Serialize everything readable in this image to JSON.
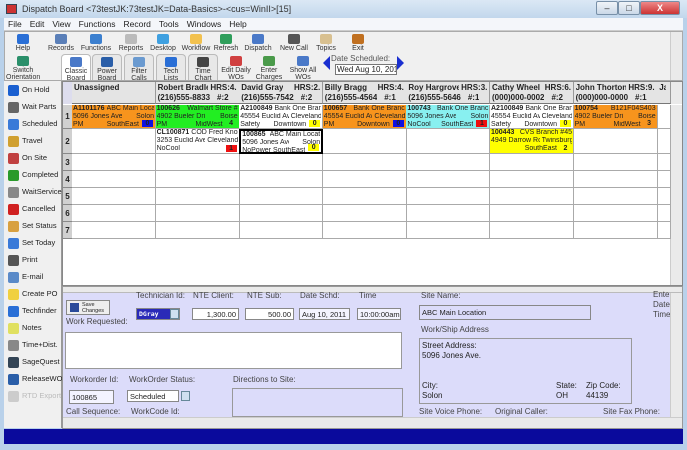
{
  "window": {
    "title": "Dispatch Board <73testJK:73testJK=Data-Basics>-<cus=WinII>[15]",
    "minimize": "–",
    "maximize": "□",
    "close": "X"
  },
  "menu": [
    "File",
    "Edit",
    "View",
    "Functions",
    "Record",
    "Tools",
    "Windows",
    "Help"
  ],
  "toolbar": {
    "row1": [
      {
        "label": "Help",
        "icon": "help-icon",
        "color": "#2a6fd6"
      },
      {
        "label": "Records",
        "icon": "records-icon",
        "color": "#5a7fb8"
      },
      {
        "label": "Functions",
        "icon": "gears-icon",
        "color": "#3b7fcf"
      },
      {
        "label": "Reports",
        "icon": "reports-icon",
        "color": "#bbb"
      },
      {
        "label": "Desktop",
        "icon": "desktop-icon",
        "color": "#3fa0e0"
      },
      {
        "label": "Workflow",
        "icon": "workflow-icon",
        "color": "#f2c14e"
      },
      {
        "label": "Refresh",
        "icon": "refresh-icon",
        "color": "#2f9e5b"
      },
      {
        "label": "Dispatch",
        "icon": "dispatch-icon",
        "color": "#4a79c8"
      },
      {
        "label": "New Call",
        "icon": "headset-icon",
        "color": "#555"
      },
      {
        "label": "Topics",
        "icon": "topics-icon",
        "color": "#d8c090"
      },
      {
        "label": "Exit",
        "icon": "exit-door-icon",
        "color": "#c07020"
      }
    ],
    "row2": [
      {
        "label": "Switch Orientation",
        "icon": "switch-orientation-icon",
        "color": "#2a8f6a"
      },
      {
        "label": "Classic Board",
        "icon": "classic-board-icon",
        "color": "#4a79c8"
      },
      {
        "label": "Power Board",
        "icon": "power-board-icon",
        "color": "#2a5ea8"
      },
      {
        "label": "Filter Calls",
        "icon": "filter-icon",
        "color": "#6a9ad0"
      },
      {
        "label": "Tech Lists",
        "icon": "tech-lists-icon",
        "color": "#2a6fd6"
      },
      {
        "label": "Time Chart",
        "icon": "time-chart-icon",
        "color": "#444"
      },
      {
        "label": "Edit Daily WOs",
        "icon": "edit-icon",
        "color": "#d04040"
      },
      {
        "label": "Enter Charges",
        "icon": "charges-icon",
        "color": "#4a9a4a"
      },
      {
        "label": "Show All WOs",
        "icon": "show-all-icon",
        "color": "#4a79c8"
      }
    ],
    "date_label": "Date Scheduled:",
    "date_value": "Wed Aug 10, 2011"
  },
  "sidebar": [
    {
      "label": "On Hold",
      "icon": "on-hold-icon",
      "color": "#1a5fd0"
    },
    {
      "label": "Wait Parts",
      "icon": "wait-parts-icon",
      "color": "#666"
    },
    {
      "label": "Scheduled",
      "icon": "calendar-icon",
      "color": "#3a7ad8"
    },
    {
      "label": "Travel",
      "icon": "travel-icon",
      "color": "#d0a030"
    },
    {
      "label": "On Site",
      "icon": "on-site-icon",
      "color": "#c04040"
    },
    {
      "label": "Completed",
      "icon": "checkmark-icon",
      "color": "#2a9a2a"
    },
    {
      "label": "WaitService",
      "icon": "clock-icon",
      "color": "#888"
    },
    {
      "label": "Cancelled",
      "icon": "cancel-icon",
      "color": "#d02020"
    },
    {
      "label": "Set Status",
      "icon": "set-status-icon",
      "color": "#d8a040"
    },
    {
      "label": "Set Today",
      "icon": "set-today-icon",
      "color": "#3a7ad8"
    },
    {
      "label": "Print",
      "icon": "printer-icon",
      "color": "#555"
    },
    {
      "label": "E-mail",
      "icon": "email-icon",
      "color": "#5a8ac8"
    },
    {
      "label": "Create PO",
      "icon": "create-po-icon",
      "color": "#f0d040"
    },
    {
      "label": "Techfinder",
      "icon": "techfinder-icon",
      "color": "#2a6fd6"
    },
    {
      "label": "Notes",
      "icon": "notes-icon",
      "color": "#e0e060"
    },
    {
      "label": "Time+Dist.",
      "icon": "stopwatch-icon",
      "color": "#888"
    },
    {
      "label": "SageQuest",
      "icon": "sagequest-icon",
      "color": "#345"
    },
    {
      "label": "ReleaseWO",
      "icon": "release-icon",
      "color": "#2a5ea8"
    },
    {
      "label": "RTD Export",
      "icon": "rtd-export-icon",
      "color": "#ccc",
      "disabled": true
    }
  ],
  "grid": {
    "columns": [
      {
        "name": "Unassigned",
        "phone": "",
        "hrs": "",
        "count": ""
      },
      {
        "name": "Robert Bradley",
        "hrs": "HRS:4.",
        "phone": "(216)555-8833",
        "count": "#:2"
      },
      {
        "name": "David Gray",
        "hrs": "HRS:2.",
        "phone": "(216)555-7542",
        "count": "#:2"
      },
      {
        "name": "Billy Bragg",
        "hrs": "HRS:4.",
        "phone": "(216)555-4564",
        "count": "#:1"
      },
      {
        "name": "Roy Hargrove",
        "hrs": "HRS:3.",
        "phone": "(216)555-5646",
        "count": "#:1"
      },
      {
        "name": "Cathy Wheel",
        "hrs": "HRS:6.",
        "phone": "(000)000-0002",
        "count": "#:2"
      },
      {
        "name": "John Thorton",
        "hrs": "HRS:9.",
        "phone": "(000)000-0000",
        "count": "#:1"
      },
      {
        "name": "Jac",
        "hrs": "",
        "phone": "(000",
        "count": ""
      }
    ],
    "row_numbers": [
      "1",
      "2",
      "3",
      "4",
      "5",
      "6",
      "7"
    ],
    "cells": [
      {
        "row": 0,
        "col": 0,
        "bg": "#f7941d",
        "wo": "A1101176",
        "site": "ABC Main Locat",
        "addr": "5096 Jones Ave.",
        "city": "Solon",
        "type": "PM",
        "zone": "SouthEast",
        "num": "0",
        "badge": "#1010e0"
      },
      {
        "row": 0,
        "col": 1,
        "bg": "#22ee22",
        "wo": "100626",
        "site": "Walmart Store #",
        "addr": "4902 Bueler Drive",
        "city": "Boise",
        "type": "PM",
        "zone": "MidWest",
        "num": "4",
        "badge": ""
      },
      {
        "row": 0,
        "col": 2,
        "bg": "#ffffff",
        "wo": "A2100849",
        "site": "Bank One Branc",
        "addr": "45554 Euclid Ave.",
        "city": "Cleveland",
        "type": "Safety",
        "zone": "Downtown",
        "num": "0",
        "badge": "#ffff00"
      },
      {
        "row": 0,
        "col": 3,
        "bg": "#f7941d",
        "wo": "100657",
        "site": "Bank One Branc",
        "addr": "45554 Euclid Ave.",
        "city": "Cleveland",
        "type": "PM",
        "zone": "Downtown",
        "num": "0",
        "badge": "#1010e0"
      },
      {
        "row": 0,
        "col": 4,
        "bg": "#88f0f0",
        "wo": "100743",
        "site": "Bank One Branc",
        "addr": "5096 Jones Ave.",
        "city": "Solon",
        "type": "NoCool",
        "zone": "SouthEast",
        "num": "1",
        "badge": "#ee1010"
      },
      {
        "row": 0,
        "col": 5,
        "bg": "#ffffff",
        "wo": "A2100849",
        "site": "Bank One Branc",
        "addr": "45554 Euclid Ave.",
        "city": "Cleveland",
        "type": "Safety",
        "zone": "Downtown",
        "num": "0",
        "badge": "#ffff00"
      },
      {
        "row": 0,
        "col": 6,
        "bg": "#f7941d",
        "wo": "100754",
        "site": "B121F04S403",
        "addr": "4902 Bueler Drive",
        "city": "Boise",
        "type": "PM",
        "zone": "MidWest",
        "num": "3",
        "badge": ""
      },
      {
        "row": 1,
        "col": 1,
        "bg": "#ffffff",
        "wo": "CL100871",
        "site": "COD Fred Knox",
        "addr": "3253 Euclid Ave.",
        "city": "Cleveland",
        "type": "NoCool",
        "zone": "",
        "num": "1",
        "badge": "#ee1010"
      },
      {
        "row": 1,
        "col": 2,
        "bg": "#ffffff",
        "wo": "100865",
        "site": "ABC Main Locat",
        "addr": "5096 Jones Ave.",
        "city": "Solon",
        "type": "NoPower",
        "zone": "SouthEast",
        "num": "0",
        "badge": "#ffff00",
        "selected": true
      },
      {
        "row": 1,
        "col": 5,
        "bg": "#ffff00",
        "wo": "100443",
        "site": "CVS Branch #45",
        "addr": "4949 Darrow Road",
        "city": "Twinsburg",
        "type": "",
        "zone": "SouthEast",
        "num": "2",
        "badge": ""
      }
    ]
  },
  "detail": {
    "save_label": "Save Changes",
    "work_requested_label": "Work Requested:",
    "work_requested": "",
    "technician_label": "Technician Id:",
    "technician": "DGray",
    "nte_client_label": "NTE Client:",
    "nte_client": "1,300.00",
    "nte_sub_label": "NTE Sub:",
    "nte_sub": "500.00",
    "date_schd_label": "Date Schd:",
    "date_schd": "Aug 10, 2011",
    "time_label": "Time",
    "time": "10:00:00am",
    "workorder_id_label": "Workorder Id:",
    "workorder_id": "100865",
    "status_label": "WorkOrder Status:",
    "status": "Scheduled",
    "directions_label": "Directions to Site:",
    "call_seq_label": "Call Sequence:",
    "workcode_label": "WorkCode Id:",
    "site_name_label": "Site Name:",
    "site_name": "ABC Main Location",
    "work_ship_label": "Work/Ship Address",
    "street_label": "Street Address:",
    "street": "5096 Jones Ave.",
    "city_label": "City:",
    "city": "Solon",
    "state_label": "State:",
    "state": "OH",
    "zip_label": "Zip Code:",
    "zip": "44139",
    "voice_label": "Site Voice Phone:",
    "caller_label": "Original Caller:",
    "fax_label": "Site Fax Phone:",
    "entered_label": "Ente",
    "date_label": "Date",
    "time2_label": "Time"
  }
}
